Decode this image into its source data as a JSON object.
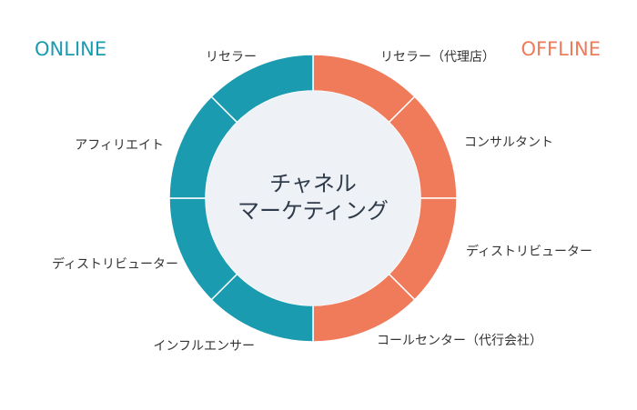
{
  "online": {
    "title": "ONLINE",
    "channels": [
      "リセラー",
      "アフィリエイト",
      "ディストリビューター",
      "インフルエンサー"
    ]
  },
  "offline": {
    "title": "OFFLINE",
    "channels": [
      "リセラー（代理店）",
      "コンサルタント",
      "ディストリビューター",
      "コールセンター（代行会社）"
    ]
  },
  "center": {
    "lines": [
      "チャネル",
      "マーケティング"
    ]
  }
}
